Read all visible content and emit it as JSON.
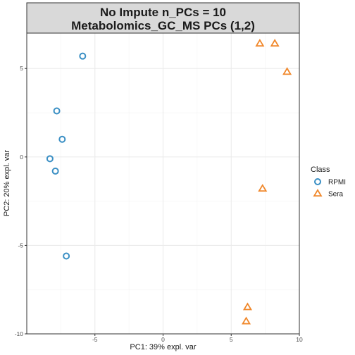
{
  "chart_data": {
    "type": "scatter",
    "title_lines": [
      "No Impute n_PCs = 10",
      "Metabolomics_GC_MS PCs (1,2)"
    ],
    "xlabel": "PC1: 39% expl. var",
    "ylabel": "PC2: 20% expl. var",
    "xlim": [
      -10,
      10
    ],
    "ylim": [
      -10,
      7
    ],
    "xticks": [
      -5,
      0,
      5,
      10
    ],
    "xtick_labels": [
      "-5",
      "0",
      "5",
      "10"
    ],
    "yticks": [
      -10,
      -5,
      0,
      5
    ],
    "ytick_labels": [
      "-10",
      "-5",
      "0",
      "5"
    ],
    "grid": true,
    "legend_title": "Class",
    "legend_position": "right",
    "series": [
      {
        "name": "RPMI",
        "shape": "circle",
        "color": "#3a8fc4",
        "points": [
          {
            "x": -5.9,
            "y": 5.7
          },
          {
            "x": -7.8,
            "y": 2.6
          },
          {
            "x": -7.4,
            "y": 1.0
          },
          {
            "x": -8.3,
            "y": -0.1
          },
          {
            "x": -7.9,
            "y": -0.8
          },
          {
            "x": -7.1,
            "y": -5.6
          }
        ]
      },
      {
        "name": "Sera",
        "shape": "triangle",
        "color": "#f0872a",
        "points": [
          {
            "x": 7.1,
            "y": 6.4
          },
          {
            "x": 8.2,
            "y": 6.4
          },
          {
            "x": 9.1,
            "y": 4.8
          },
          {
            "x": 7.3,
            "y": -1.8
          },
          {
            "x": 6.2,
            "y": -8.5
          },
          {
            "x": 6.1,
            "y": -9.3
          }
        ]
      }
    ]
  }
}
